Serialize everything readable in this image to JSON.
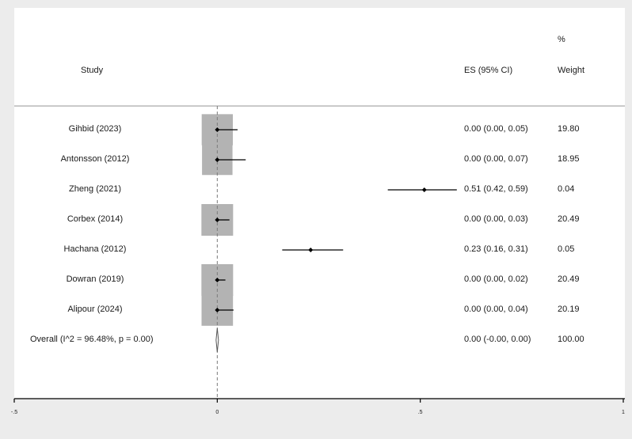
{
  "headers": {
    "study": "Study",
    "es": "ES (95% CI)",
    "weight_pct": "%",
    "weight": "Weight"
  },
  "chart_data": {
    "type": "forest",
    "xlim": [
      -0.5,
      1
    ],
    "reference_line": 0,
    "x_ticks": [
      {
        "value": -0.5,
        "label": "-.5"
      },
      {
        "value": 0,
        "label": "0"
      },
      {
        "value": 0.5,
        "label": ".5"
      },
      {
        "value": 1,
        "label": "1"
      }
    ],
    "studies": [
      {
        "label": "Gihbid  (2023)",
        "es": 0.0,
        "lo": 0.0,
        "hi": 0.05,
        "es_text": "0.00 (0.00, 0.05)",
        "weight": 19.8,
        "weight_text": "19.80"
      },
      {
        "label": "Antonsson (2012)",
        "es": 0.0,
        "lo": 0.0,
        "hi": 0.07,
        "es_text": "0.00 (0.00, 0.07)",
        "weight": 18.95,
        "weight_text": "18.95"
      },
      {
        "label": "Zheng (2021)",
        "es": 0.51,
        "lo": 0.42,
        "hi": 0.59,
        "es_text": "0.51 (0.42, 0.59)",
        "weight": 0.04,
        "weight_text": "0.04"
      },
      {
        "label": "Corbex (2014)",
        "es": 0.0,
        "lo": 0.0,
        "hi": 0.03,
        "es_text": "0.00 (0.00, 0.03)",
        "weight": 20.49,
        "weight_text": "20.49"
      },
      {
        "label": "Hachana (2012)",
        "es": 0.23,
        "lo": 0.16,
        "hi": 0.31,
        "es_text": "0.23 (0.16, 0.31)",
        "weight": 0.05,
        "weight_text": "0.05"
      },
      {
        "label": "Dowran (2019)",
        "es": 0.0,
        "lo": 0.0,
        "hi": 0.02,
        "es_text": "0.00 (0.00, 0.02)",
        "weight": 20.49,
        "weight_text": "20.49"
      },
      {
        "label": "Alipour (2024)",
        "es": 0.0,
        "lo": 0.0,
        "hi": 0.04,
        "es_text": "0.00 (0.00, 0.04)",
        "weight": 20.19,
        "weight_text": "20.19"
      }
    ],
    "overall": {
      "label": "Overall  (I^2 = 96.48%, p = 0.00)",
      "es": 0.0,
      "lo": 0.0,
      "hi": 0.0,
      "es_text": "0.00 (-0.00, 0.00)",
      "weight_text": "100.00"
    }
  }
}
